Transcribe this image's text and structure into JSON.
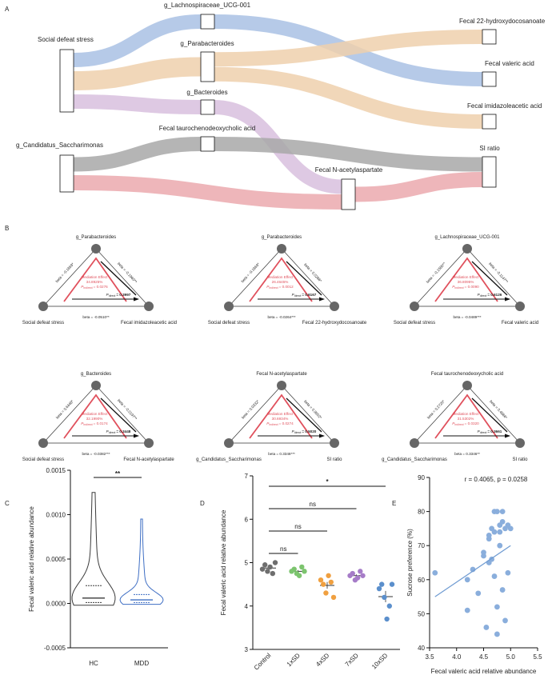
{
  "panel_labels": [
    "A",
    "B",
    "C",
    "D",
    "E"
  ],
  "chart_data": [
    {
      "type": "sankey",
      "nodes": [
        "Social defeat stress",
        "g_Lachnospiraceae_UCG-001",
        "g_Parabacteroides",
        "g_Bacteroides",
        "Fecal taurochenodeoxycholic acid",
        "g_Candidatus_Saccharimonas",
        "Fecal N-acetylaspartate",
        "Fecal 22-hydroxydocosanoate",
        "Fecal valeric acid",
        "Fecal imidazoleacetic acid",
        "SI ratio"
      ],
      "links": [
        {
          "source": "Social defeat stress",
          "target": "g_Lachnospiraceae_UCG-001",
          "color": "#a9c1e4"
        },
        {
          "source": "Social defeat stress",
          "target": "g_Parabacteroides",
          "color": "#efd0ad"
        },
        {
          "source": "Social defeat stress",
          "target": "g_Bacteroides",
          "color": "#d8c0de"
        },
        {
          "source": "g_Lachnospiraceae_UCG-001",
          "target": "Fecal valeric acid",
          "color": "#a9c1e4"
        },
        {
          "source": "g_Parabacteroides",
          "target": "Fecal 22-hydroxydocosanoate",
          "color": "#efd0ad"
        },
        {
          "source": "g_Parabacteroides",
          "target": "Fecal imidazoleacetic acid",
          "color": "#efd0ad"
        },
        {
          "source": "g_Bacteroides",
          "target": "Fecal N-acetylaspartate",
          "color": "#d8c0de"
        },
        {
          "source": "g_Candidatus_Saccharimonas",
          "target": "Fecal taurochenodeoxycholic acid",
          "color": "#a8a8a8"
        },
        {
          "source": "g_Candidatus_Saccharimonas",
          "target": "Fecal N-acetylaspartate",
          "color": "#eba9ae"
        },
        {
          "source": "Fecal taurochenodeoxycholic acid",
          "target": "SI ratio",
          "color": "#a8a8a8"
        },
        {
          "source": "Fecal N-acetylaspartate",
          "target": "SI ratio",
          "color": "#eba9ae"
        }
      ]
    },
    {
      "type": "mediation",
      "effect_title": "Mediation Effect",
      "p_symbol": "P",
      "indirect_sub": "indirect",
      "direct_sub": "direct",
      "diagrams": [
        {
          "mediator": "g_Parabacteroides",
          "exposure": "Social defeat stress",
          "outcome": "Fecal imidazoleacetic acid",
          "beta_a": "beta = -0.1869*",
          "beta_b": "beta = -0.1960**",
          "beta_direct": "beta = -0.0510**",
          "effect": "34.8925%",
          "p_indirect": "= 0.0276",
          "p_direct": "= 0.3997"
        },
        {
          "mediator": "g_Parabacteroides",
          "exposure": "Social defeat stress",
          "outcome": "Fecal 22-hydroxydocosanoate",
          "beta_a": "beta = -0.1869*",
          "beta_b": "beta = 0.0286*",
          "beta_direct": "beta = -0.0264***",
          "effect": "26.4645%",
          "p_indirect": "= 0.0012",
          "p_direct": "= 0.6167"
        },
        {
          "mediator": "g_Lachnospiraceae_UCG-001",
          "exposure": "Social defeat stress",
          "outcome": "Fecal valeric acid",
          "beta_a": "beta = -0.1586**",
          "beta_b": "beta = -0.1147**",
          "beta_direct": "beta = -0.0489***",
          "effect": "36.8095%",
          "p_indirect": "= 0.0090",
          "p_direct": "= 0.6126"
        },
        {
          "mediator": "g_Bacteroides",
          "exposure": "Social defeat stress",
          "outcome": "Fecal N-acetylaspartate",
          "beta_a": "beta = 0.6448*",
          "beta_b": "beta = -0.0197**",
          "beta_direct": "beta = -0.0382***",
          "effect": "32.1990%",
          "p_indirect": "= 0.0174",
          "p_direct": "= 0.3448"
        },
        {
          "mediator": "Fecal N-acetylaspartate",
          "exposure": "g_Candidatus_Saccharimonas",
          "outcome": "SI ratio",
          "beta_a": "beta = 0.0332*",
          "beta_b": "beta = 0.9602*",
          "beta_direct": "beta = 0.3346***",
          "effect": "30.6934%",
          "p_indirect": "= 0.0274",
          "p_direct": "= 0.5020"
        },
        {
          "mediator": "Fecal taurochenodeoxycholic acid",
          "exposure": "g_Candidatus_Saccharimonas",
          "outcome": "SI ratio",
          "beta_a": "beta = 0.2726*",
          "beta_b": "beta = 0.4866*",
          "beta_direct": "beta = 0.3346**",
          "effect": "31.5302%",
          "p_indirect": "= 0.0320",
          "p_direct": "= 0.3661"
        }
      ]
    },
    {
      "type": "violin",
      "y_label": "Fecal valeric acid relative abundance",
      "significance": "**",
      "series": [
        {
          "name": "HC",
          "color": "#3a3a3a",
          "min": -2e-05,
          "q1": 1e-05,
          "median": 6e-05,
          "q3": 0.0002,
          "max": 0.00125
        },
        {
          "name": "MDD",
          "color": "#3f6fc4",
          "min": -1e-05,
          "q1": 1e-05,
          "median": 4e-05,
          "q3": 0.0001,
          "max": 0.00095
        }
      ],
      "ylim": [
        -0.0005,
        0.0015
      ],
      "yticks": [
        -0.0005,
        {
          "value": 0,
          "label": "0.0000"
        },
        0.0005,
        {
          "value": 0.001,
          "label": "0.0010"
        },
        0.0015
      ]
    },
    {
      "type": "dot",
      "y_label": "Fecal valeric acid relative abundance",
      "categories": [
        "Control",
        "1xSD",
        "4xSD",
        "7xSD",
        "10xSD"
      ],
      "colors": [
        "#6e6e6e",
        "#7cc46e",
        "#f0a040",
        "#a67cc8",
        "#5b8fcc"
      ],
      "values": [
        [
          4.85,
          4.95,
          4.8,
          4.9,
          4.75,
          5.0
        ],
        [
          4.8,
          4.85,
          4.75,
          4.7,
          4.9,
          4.8
        ],
        [
          4.6,
          4.5,
          4.3,
          4.7,
          4.55,
          4.2
        ],
        [
          4.7,
          4.75,
          4.6,
          4.65,
          4.8,
          4.7
        ],
        [
          4.4,
          4.5,
          4.2,
          3.7,
          4.0,
          4.5
        ]
      ],
      "brackets": [
        {
          "from": "Control",
          "to": "1xSD",
          "label": "ns"
        },
        {
          "from": "Control",
          "to": "4xSD",
          "label": "ns"
        },
        {
          "from": "Control",
          "to": "7xSD",
          "label": "ns"
        },
        {
          "from": "Control",
          "to": "10xSD",
          "label": "*"
        }
      ],
      "ylim": [
        3,
        7
      ],
      "yticks": [
        3,
        4,
        5,
        6,
        7
      ]
    },
    {
      "type": "scatter",
      "annotation": "r = 0.4065, p = 0.0258",
      "x_label": "Fecal valeric acid relative abundance",
      "y_label": "Sucrose preference (%)",
      "color": "#8aaedc",
      "x": [
        3.6,
        4.2,
        4.2,
        4.3,
        4.4,
        4.5,
        4.5,
        4.55,
        4.6,
        4.6,
        4.6,
        4.65,
        4.65,
        4.7,
        4.7,
        4.7,
        4.75,
        4.75,
        4.75,
        4.8,
        4.8,
        4.8,
        4.85,
        4.85,
        4.85,
        4.9,
        4.9,
        4.95,
        4.95,
        5.0
      ],
      "y": [
        62,
        51,
        60,
        63,
        56,
        67,
        68,
        46,
        65,
        72,
        73,
        66,
        75,
        80,
        74,
        61,
        80,
        44,
        52,
        76,
        74,
        70,
        80,
        77,
        57,
        75,
        48,
        76,
        62,
        75
      ],
      "trend": {
        "x": [
          3.6,
          5.0
        ],
        "y": [
          55,
          70
        ]
      },
      "trend_color": "#6f9bd2",
      "xlim": [
        3.5,
        5.5
      ],
      "xticks": [
        3.5,
        {
          "value": 4,
          "label": "4.0"
        },
        4.5,
        {
          "value": 5,
          "label": "5.0"
        },
        5.5
      ],
      "ylim": [
        40,
        90
      ],
      "yticks": [
        40,
        50,
        60,
        70,
        80,
        90
      ]
    }
  ]
}
